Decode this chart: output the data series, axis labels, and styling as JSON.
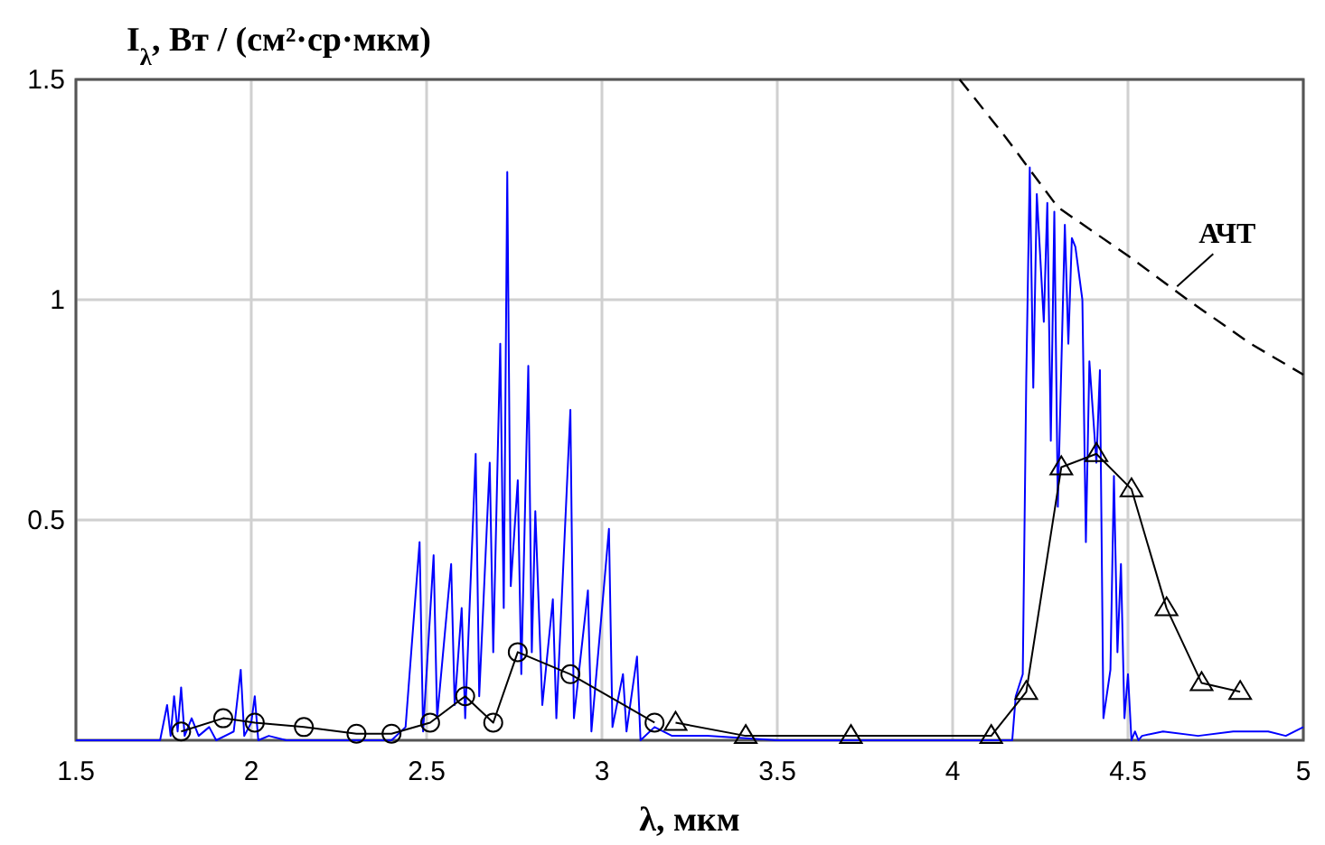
{
  "chart_data": {
    "type": "line",
    "xlabel": "λ, мкм",
    "ylabel": "I$_{λ}$, Вт / (см²·ср·мкм)",
    "xlim": [
      1.5,
      5
    ],
    "ylim": [
      0,
      1.5
    ],
    "xticks": [
      1.5,
      2,
      2.5,
      3,
      3.5,
      4,
      4.5,
      5
    ],
    "yticks": [
      0.5,
      1,
      1.5
    ],
    "grid": true,
    "annotations": [
      {
        "text": "АЧТ",
        "x": 4.64,
        "y": 1.03
      }
    ],
    "series": [
      {
        "color": "#0000ff",
        "marker": "none",
        "line_style": "solid",
        "x": [
          1.5,
          1.74,
          1.76,
          1.77,
          1.78,
          1.79,
          1.8,
          1.81,
          1.83,
          1.85,
          1.88,
          1.9,
          1.95,
          1.97,
          1.98,
          2.0,
          2.01,
          2.02,
          2.05,
          2.1,
          2.4,
          2.44,
          2.48,
          2.49,
          2.52,
          2.53,
          2.57,
          2.58,
          2.6,
          2.61,
          2.64,
          2.65,
          2.68,
          2.69,
          2.71,
          2.72,
          2.73,
          2.74,
          2.76,
          2.77,
          2.79,
          2.8,
          2.81,
          2.83,
          2.86,
          2.87,
          2.91,
          2.92,
          2.96,
          2.97,
          3.02,
          3.03,
          3.06,
          3.07,
          3.1,
          3.11,
          3.15,
          3.2,
          3.3,
          3.5,
          3.8,
          4.1,
          4.17,
          4.18,
          4.2,
          4.21,
          4.22,
          4.23,
          4.24,
          4.26,
          4.27,
          4.28,
          4.29,
          4.3,
          4.32,
          4.33,
          4.34,
          4.35,
          4.37,
          4.38,
          4.39,
          4.41,
          4.42,
          4.43,
          4.45,
          4.46,
          4.47,
          4.48,
          4.49,
          4.5,
          4.51,
          4.52,
          4.53,
          4.54,
          4.6,
          4.7,
          4.8,
          4.9,
          4.95,
          5.0
        ],
        "values": [
          0,
          0,
          0.08,
          0.01,
          0.1,
          0.02,
          0.12,
          0.01,
          0.05,
          0.01,
          0.03,
          0,
          0.02,
          0.16,
          0.01,
          0.04,
          0.1,
          0,
          0.01,
          0,
          0,
          0.03,
          0.45,
          0.02,
          0.42,
          0.05,
          0.4,
          0.08,
          0.3,
          0.05,
          0.65,
          0.1,
          0.63,
          0.2,
          0.9,
          0.3,
          1.29,
          0.35,
          0.59,
          0.15,
          0.85,
          0.2,
          0.52,
          0.08,
          0.32,
          0.05,
          0.75,
          0.05,
          0.34,
          0.02,
          0.48,
          0.03,
          0.15,
          0.02,
          0.19,
          0,
          0.03,
          0.01,
          0.01,
          0,
          0,
          0,
          0,
          0.1,
          0.15,
          0.82,
          1.3,
          0.8,
          1.24,
          0.95,
          1.22,
          0.68,
          1.2,
          0.53,
          1.17,
          0.9,
          1.14,
          1.12,
          1.0,
          0.45,
          0.86,
          0.63,
          0.84,
          0.05,
          0.16,
          0.6,
          0.2,
          0.4,
          0.05,
          0.15,
          0,
          0.02,
          0,
          0.01,
          0.02,
          0.01,
          0.02,
          0.02,
          0.01,
          0.03
        ]
      },
      {
        "color": "#000000",
        "marker": "circle",
        "line_style": "solid",
        "x": [
          1.8,
          1.92,
          2.01,
          2.15,
          2.3,
          2.4,
          2.51,
          2.61,
          2.69,
          2.76,
          2.91,
          3.15
        ],
        "values": [
          0.02,
          0.05,
          0.04,
          0.03,
          0.015,
          0.015,
          0.04,
          0.1,
          0.04,
          0.2,
          0.15,
          0.04
        ]
      },
      {
        "color": "#000000",
        "marker": "triangle",
        "line_style": "solid",
        "x": [
          3.21,
          3.41,
          3.71,
          4.11,
          4.21,
          4.31,
          4.41,
          4.51,
          4.61,
          4.71,
          4.82
        ],
        "values": [
          0.04,
          0.01,
          0.01,
          0.01,
          0.11,
          0.62,
          0.65,
          0.57,
          0.3,
          0.13,
          0.11
        ]
      },
      {
        "color": "#000000",
        "marker": "none",
        "line_style": "dashed",
        "x": [
          4.02,
          4.15,
          4.3,
          4.5,
          4.67,
          4.85,
          5.0
        ],
        "values": [
          1.5,
          1.37,
          1.21,
          1.1,
          1.0,
          0.9,
          0.83
        ]
      }
    ]
  }
}
